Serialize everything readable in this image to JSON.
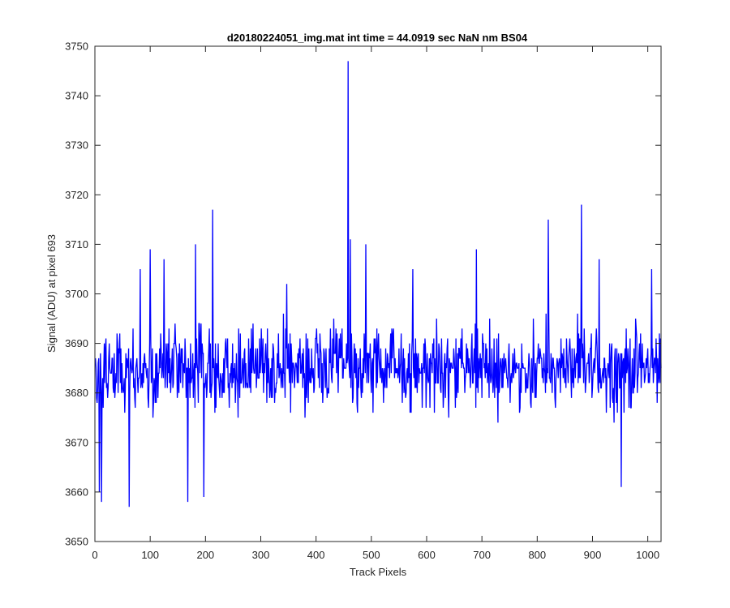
{
  "chart_data": {
    "type": "line",
    "title": "d20180224051_img.mat int time = 44.0919 sec  NaN nm BS04",
    "xlabel": "Track Pixels",
    "ylabel": "Signal (ADU) at pixel 693",
    "xlim": [
      0,
      1024
    ],
    "ylim": [
      3650,
      3750
    ],
    "xticks": [
      0,
      100,
      200,
      300,
      400,
      500,
      600,
      700,
      800,
      900,
      1000
    ],
    "yticks": [
      3650,
      3660,
      3670,
      3680,
      3690,
      3700,
      3710,
      3720,
      3730,
      3740,
      3750
    ],
    "grid": false,
    "legend": "none",
    "series": [
      {
        "color": "#0000ff",
        "noise_center": 3685,
        "noise_amplitude": 8,
        "x_start": 1,
        "x_end": 1024,
        "peaks": [
          {
            "x": 8,
            "y": 3660
          },
          {
            "x": 12,
            "y": 3658
          },
          {
            "x": 62,
            "y": 3657
          },
          {
            "x": 82,
            "y": 3705
          },
          {
            "x": 100,
            "y": 3709
          },
          {
            "x": 125,
            "y": 3707
          },
          {
            "x": 168,
            "y": 3658
          },
          {
            "x": 182,
            "y": 3710
          },
          {
            "x": 197,
            "y": 3659
          },
          {
            "x": 213,
            "y": 3717
          },
          {
            "x": 347,
            "y": 3702
          },
          {
            "x": 458,
            "y": 3747
          },
          {
            "x": 462,
            "y": 3711
          },
          {
            "x": 490,
            "y": 3710
          },
          {
            "x": 575,
            "y": 3705
          },
          {
            "x": 690,
            "y": 3709
          },
          {
            "x": 820,
            "y": 3715
          },
          {
            "x": 880,
            "y": 3718
          },
          {
            "x": 912,
            "y": 3707
          },
          {
            "x": 952,
            "y": 3661
          },
          {
            "x": 1007,
            "y": 3705
          }
        ]
      }
    ]
  }
}
